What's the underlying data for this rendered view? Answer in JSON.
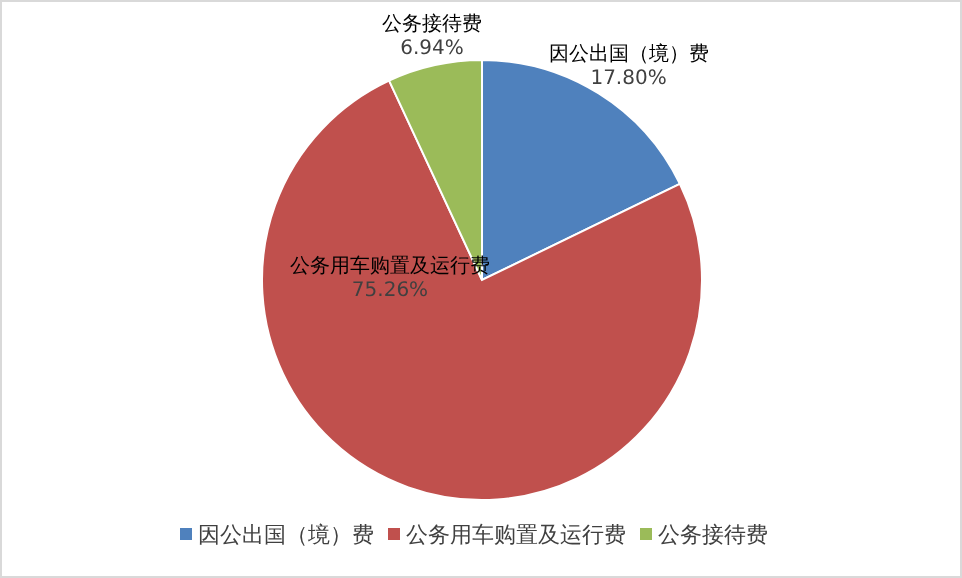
{
  "chart_data": {
    "type": "pie",
    "categories": [
      "因公出国（境）费",
      "公务用车购置及运行费",
      "公务接待费"
    ],
    "values": [
      17.8,
      75.26,
      6.94
    ],
    "colors": [
      "#4f81bd",
      "#c0504d",
      "#9bbb59"
    ],
    "value_labels": [
      "17.80%",
      "75.26%",
      "6.94%"
    ],
    "legend": "bottom"
  }
}
